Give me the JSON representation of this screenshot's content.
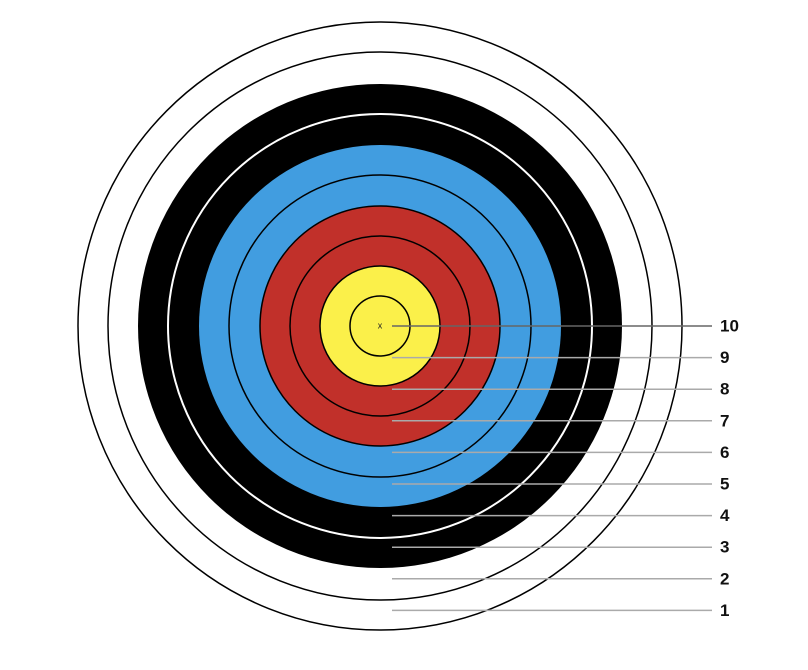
{
  "center_mark": "x",
  "rings": [
    {
      "label": "10"
    },
    {
      "label": "9"
    },
    {
      "label": "8"
    },
    {
      "label": "7"
    },
    {
      "label": "6"
    },
    {
      "label": "5"
    },
    {
      "label": "4"
    },
    {
      "label": "3"
    },
    {
      "label": "2"
    },
    {
      "label": "1"
    }
  ]
}
